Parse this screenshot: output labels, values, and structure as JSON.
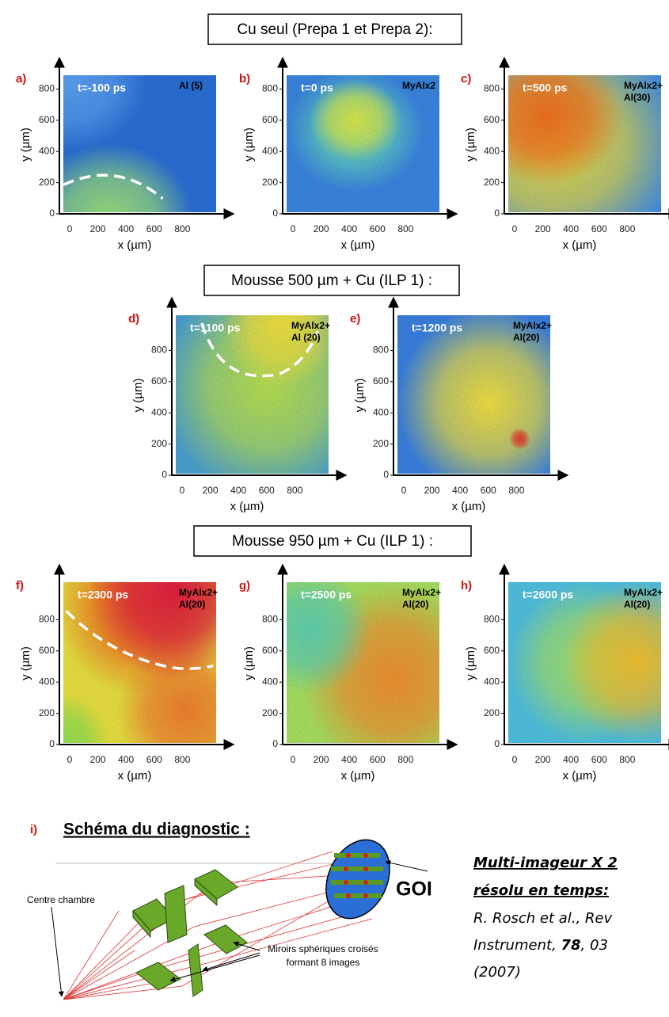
{
  "sections": [
    {
      "heading": "Cu seul (Prepa 1 et Prepa 2):"
    },
    {
      "heading": "Mousse 500 µm + Cu (ILP 1) :"
    },
    {
      "heading": "Mousse 950 µm + Cu (ILP 1) :"
    }
  ],
  "axes": {
    "y_label": "y (µm)",
    "x_label": "x (µm)",
    "y_ticks": [
      0,
      200,
      400,
      600,
      800
    ],
    "x_ticks": [
      0,
      200,
      400,
      600,
      800
    ]
  },
  "panels": [
    {
      "letter": "a)",
      "time": "t=-100 ps",
      "material": [
        "Al (5)"
      ]
    },
    {
      "letter": "b)",
      "time": "t=0 ps",
      "material": [
        "MyAlx2"
      ]
    },
    {
      "letter": "c)",
      "time": "t=500 ps",
      "material": [
        "MyAlx2+",
        "Al(30)"
      ]
    },
    {
      "letter": "d)",
      "time": "t=1100 ps",
      "material": [
        "MyAlx2+",
        "Al (20)"
      ]
    },
    {
      "letter": "e)",
      "time": "t=1200 ps",
      "material": [
        "MyAlx2+",
        "Al(20)"
      ]
    },
    {
      "letter": "f)",
      "time": "t=2300 ps",
      "material": [
        "MyAlx2+",
        "Al(20)"
      ]
    },
    {
      "letter": "g)",
      "time": "t=2500 ps",
      "material": [
        "MyAlx2+",
        "Al(20)"
      ]
    },
    {
      "letter": "h)",
      "time": "t=2600 ps",
      "material": [
        "MyAlx2+",
        "Al(20)"
      ]
    }
  ],
  "diagram": {
    "letter": "i)",
    "title": "Schéma du diagnostic :",
    "goi": "GOI",
    "centre": "Centre chambre",
    "mirrors": [
      "Miroirs sphériques croisés",
      "formant 8 images"
    ]
  },
  "reference": {
    "title": [
      "Multi-imageur X 2",
      "résolu en temps:"
    ],
    "authors": "R. Rosch et al., Rev",
    "journal": [
      "Instrument, ",
      "78",
      ", 03"
    ],
    "year": "(2007)"
  }
}
